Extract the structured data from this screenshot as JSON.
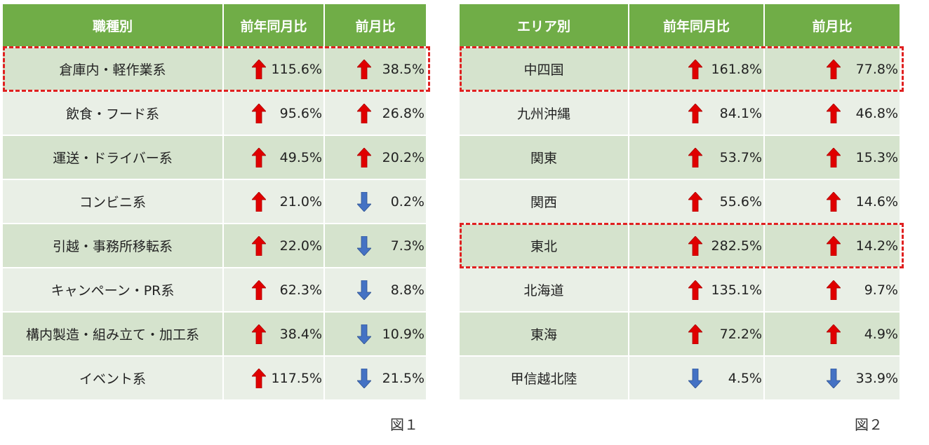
{
  "colors": {
    "header": "#70ad47",
    "up": "#e00000",
    "down": "#4472c4",
    "highlight": "#e02020"
  },
  "table1": {
    "headers": [
      "職種別",
      "前年同月比",
      "前月比"
    ],
    "rows": [
      {
        "name": "倉庫内・軽作業系",
        "yoy": "115.6%",
        "yoy_dir": "up",
        "mom": "38.5%",
        "mom_dir": "up",
        "highlight": true
      },
      {
        "name": "飲食・フード系",
        "yoy": "95.6%",
        "yoy_dir": "up",
        "mom": "26.8%",
        "mom_dir": "up"
      },
      {
        "name": "運送・ドライバー系",
        "yoy": "49.5%",
        "yoy_dir": "up",
        "mom": "20.2%",
        "mom_dir": "up"
      },
      {
        "name": "コンビニ系",
        "yoy": "21.0%",
        "yoy_dir": "up",
        "mom": "0.2%",
        "mom_dir": "down"
      },
      {
        "name": "引越・事務所移転系",
        "yoy": "22.0%",
        "yoy_dir": "up",
        "mom": "7.3%",
        "mom_dir": "down"
      },
      {
        "name": "キャンペーン・PR系",
        "yoy": "62.3%",
        "yoy_dir": "up",
        "mom": "8.8%",
        "mom_dir": "down"
      },
      {
        "name": "構内製造・組み立て・加工系",
        "yoy": "38.4%",
        "yoy_dir": "up",
        "mom": "10.9%",
        "mom_dir": "down"
      },
      {
        "name": "イベント系",
        "yoy": "117.5%",
        "yoy_dir": "up",
        "mom": "21.5%",
        "mom_dir": "down"
      }
    ],
    "caption": "図１"
  },
  "table2": {
    "headers": [
      "エリア別",
      "前年同月比",
      "前月比"
    ],
    "rows": [
      {
        "name": "中四国",
        "yoy": "161.8%",
        "yoy_dir": "up",
        "mom": "77.8%",
        "mom_dir": "up",
        "highlight": true
      },
      {
        "name": "九州沖縄",
        "yoy": "84.1%",
        "yoy_dir": "up",
        "mom": "46.8%",
        "mom_dir": "up"
      },
      {
        "name": "関東",
        "yoy": "53.7%",
        "yoy_dir": "up",
        "mom": "15.3%",
        "mom_dir": "up"
      },
      {
        "name": "関西",
        "yoy": "55.6%",
        "yoy_dir": "up",
        "mom": "14.6%",
        "mom_dir": "up"
      },
      {
        "name": "東北",
        "yoy": "282.5%",
        "yoy_dir": "up",
        "mom": "14.2%",
        "mom_dir": "up",
        "highlight": true
      },
      {
        "name": "北海道",
        "yoy": "135.1%",
        "yoy_dir": "up",
        "mom": "9.7%",
        "mom_dir": "up"
      },
      {
        "name": "東海",
        "yoy": "72.2%",
        "yoy_dir": "up",
        "mom": "4.9%",
        "mom_dir": "up"
      },
      {
        "name": "甲信越北陸",
        "yoy": "4.5%",
        "yoy_dir": "down",
        "mom": "33.9%",
        "mom_dir": "down"
      }
    ],
    "caption": "図２"
  }
}
